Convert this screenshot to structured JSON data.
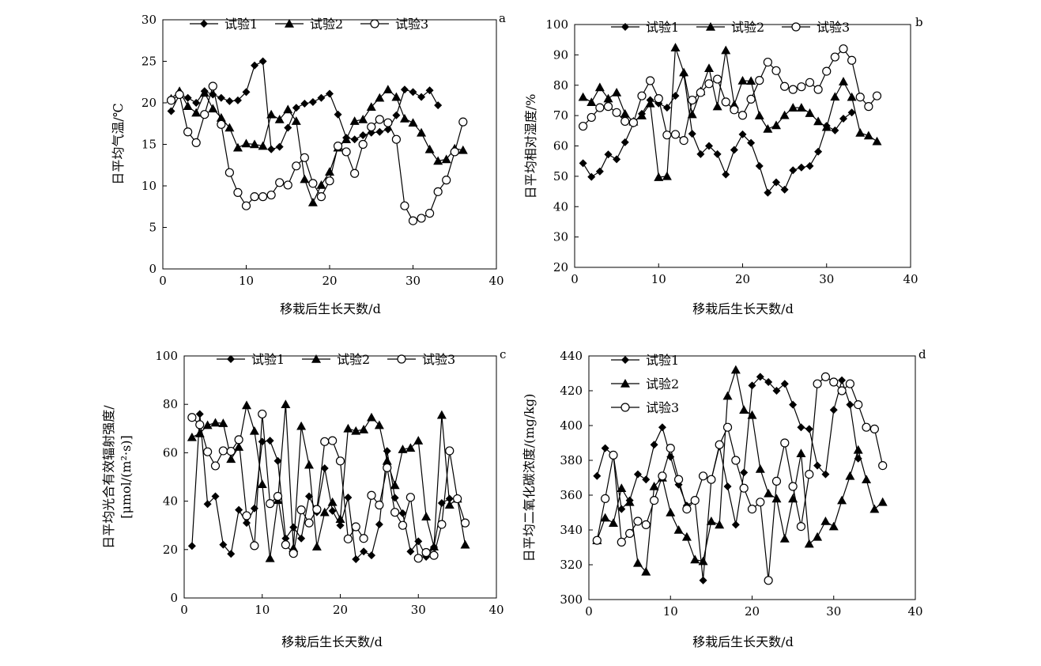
{
  "chart_data": [
    {
      "type": "line",
      "letter": "a",
      "xlabel": "移栽后生长天数/d",
      "ylabel": [
        "日平均气温/℃"
      ],
      "xlim": [
        0,
        40
      ],
      "ylim": [
        0,
        30
      ],
      "xticks": [
        0,
        10,
        20,
        30,
        40
      ],
      "yticks": [
        0,
        5,
        10,
        15,
        20,
        25,
        30
      ],
      "legend_layout": "row",
      "series": [
        {
          "name": "试验1",
          "marker": "diamond",
          "x": [
            1,
            2,
            3,
            4,
            5,
            6,
            7,
            8,
            9,
            10,
            11,
            12,
            13,
            14,
            15,
            16,
            17,
            18,
            19,
            20,
            21,
            22,
            23,
            24,
            25,
            26,
            27,
            28,
            29,
            30,
            31,
            32,
            33
          ],
          "y": [
            19.0,
            21.0,
            20.6,
            20.0,
            21.4,
            21.0,
            20.6,
            20.2,
            20.3,
            21.3,
            24.5,
            25.0,
            14.4,
            14.7,
            17.0,
            19.4,
            19.9,
            20.1,
            20.6,
            21.1,
            18.6,
            15.8,
            15.6,
            16.1,
            16.4,
            16.5,
            16.8,
            18.5,
            21.6,
            21.3,
            20.7,
            21.5,
            19.7
          ]
        },
        {
          "name": "试验2",
          "marker": "triangle",
          "x": [
            1,
            2,
            3,
            4,
            5,
            6,
            7,
            8,
            9,
            10,
            11,
            12,
            13,
            14,
            15,
            16,
            17,
            18,
            19,
            20,
            21,
            22,
            23,
            24,
            25,
            26,
            27,
            28,
            29,
            30,
            31,
            32,
            33,
            34,
            35,
            36
          ],
          "y": [
            20.5,
            21.4,
            19.6,
            18.8,
            21.2,
            19.3,
            18.2,
            17.0,
            14.6,
            15.1,
            15.0,
            14.8,
            18.6,
            18.0,
            19.2,
            17.8,
            10.8,
            8.0,
            10.1,
            11.7,
            14.6,
            15.6,
            17.8,
            18.0,
            19.5,
            20.6,
            21.6,
            20.7,
            18.1,
            17.6,
            16.4,
            14.4,
            13.0,
            13.2,
            14.5,
            14.3
          ]
        },
        {
          "name": "试验3",
          "marker": "circle",
          "x": [
            1,
            2,
            3,
            4,
            5,
            6,
            7,
            8,
            9,
            10,
            11,
            12,
            13,
            14,
            15,
            16,
            17,
            18,
            19,
            20,
            21,
            22,
            23,
            24,
            25,
            26,
            27,
            28,
            29,
            30,
            31,
            32,
            33,
            34,
            35,
            36
          ],
          "y": [
            20.3,
            21.0,
            16.5,
            15.2,
            18.6,
            22.0,
            17.4,
            11.6,
            9.2,
            7.6,
            8.7,
            8.7,
            8.9,
            10.4,
            10.1,
            12.4,
            13.4,
            10.3,
            8.7,
            10.6,
            14.8,
            14.1,
            11.5,
            15.0,
            17.1,
            18.0,
            17.6,
            15.6,
            7.6,
            5.8,
            6.1,
            6.7,
            9.3,
            10.7,
            14.1,
            17.7
          ]
        }
      ]
    },
    {
      "type": "line",
      "letter": "b",
      "xlabel": "移栽后生长天数/d",
      "ylabel": [
        "日平均相对湿度/%"
      ],
      "xlim": [
        0,
        40
      ],
      "ylim": [
        20,
        100
      ],
      "xticks": [
        0,
        10,
        20,
        30,
        40
      ],
      "yticks": [
        20,
        30,
        40,
        50,
        60,
        70,
        80,
        90,
        100
      ],
      "legend_layout": "row",
      "series": [
        {
          "name": "试验1",
          "marker": "diamond",
          "x": [
            1,
            2,
            3,
            4,
            5,
            6,
            7,
            8,
            9,
            10,
            11,
            12,
            13,
            14,
            15,
            16,
            17,
            18,
            19,
            20,
            21,
            22,
            23,
            24,
            25,
            26,
            27,
            28,
            29,
            30,
            31,
            32,
            33
          ],
          "y": [
            54.3,
            49.8,
            51.6,
            57.2,
            55.6,
            61.2,
            67.4,
            70.6,
            75.1,
            74.0,
            72.6,
            76.5,
            83.6,
            64.0,
            57.3,
            60.0,
            57.3,
            50.6,
            58.7,
            63.8,
            61.0,
            53.4,
            44.6,
            48.0,
            45.6,
            52.0,
            52.9,
            53.4,
            58.1,
            66.6,
            65.1,
            69.0,
            71.0
          ]
        },
        {
          "name": "试验2",
          "marker": "triangle",
          "x": [
            1,
            2,
            3,
            4,
            5,
            6,
            7,
            8,
            9,
            10,
            11,
            12,
            13,
            14,
            15,
            16,
            17,
            18,
            19,
            20,
            21,
            22,
            23,
            24,
            25,
            26,
            27,
            28,
            29,
            30,
            31,
            32,
            33,
            34,
            35,
            36
          ],
          "y": [
            76.1,
            74.4,
            79.3,
            75.6,
            77.6,
            70.6,
            68.0,
            70.0,
            74.0,
            49.7,
            50.0,
            92.4,
            84.2,
            70.4,
            78.0,
            85.6,
            73.0,
            91.5,
            73.6,
            81.5,
            81.4,
            70.0,
            65.6,
            66.8,
            70.1,
            72.6,
            72.6,
            70.8,
            68.1,
            66.2,
            76.2,
            81.2,
            76.1,
            64.3,
            63.4,
            61.5
          ]
        },
        {
          "name": "试验3",
          "marker": "circle",
          "x": [
            1,
            2,
            3,
            4,
            5,
            6,
            7,
            8,
            9,
            10,
            11,
            12,
            13,
            14,
            15,
            16,
            17,
            18,
            19,
            20,
            21,
            22,
            23,
            24,
            25,
            26,
            27,
            28,
            29,
            30,
            31,
            32,
            33,
            34,
            35,
            36
          ],
          "y": [
            66.5,
            69.4,
            72.6,
            73.0,
            71.0,
            68.1,
            67.7,
            76.5,
            81.5,
            75.6,
            63.6,
            63.8,
            61.8,
            75.1,
            77.6,
            80.5,
            82.0,
            74.5,
            71.9,
            70.1,
            75.4,
            81.6,
            87.6,
            84.8,
            79.6,
            78.6,
            79.5,
            80.9,
            78.6,
            84.6,
            89.3,
            92.0,
            88.2,
            76.1,
            73.0,
            76.5
          ]
        }
      ]
    },
    {
      "type": "line",
      "letter": "c",
      "xlabel": "移栽后生长天数/d",
      "ylabel": [
        "日平均光合有效辐射强度/",
        "[μmol/(m²·s)]"
      ],
      "xlim": [
        0,
        40
      ],
      "ylim": [
        0,
        100
      ],
      "xticks": [
        0,
        10,
        20,
        30,
        40
      ],
      "yticks": [
        0,
        20,
        40,
        60,
        80,
        100
      ],
      "legend_layout": "row",
      "series": [
        {
          "name": "试验1",
          "marker": "diamond",
          "x": [
            1,
            2,
            3,
            4,
            5,
            6,
            7,
            8,
            9,
            10,
            11,
            12,
            13,
            14,
            15,
            16,
            17,
            18,
            19,
            20,
            21,
            22,
            23,
            24,
            25,
            26,
            27,
            28,
            29,
            30,
            31,
            32,
            33,
            34
          ],
          "y": [
            21.5,
            76.0,
            38.8,
            42.0,
            22.0,
            18.2,
            36.4,
            31.0,
            37.0,
            64.6,
            65.0,
            56.6,
            24.6,
            29.2,
            24.6,
            42.0,
            35.4,
            53.6,
            36.0,
            30.0,
            41.5,
            16.0,
            19.2,
            17.6,
            30.4,
            60.7,
            41.4,
            35.0,
            19.2,
            23.4,
            17.0,
            21.0,
            39.2,
            41.0
          ]
        },
        {
          "name": "试验2",
          "marker": "triangle",
          "x": [
            1,
            2,
            3,
            4,
            5,
            6,
            7,
            8,
            9,
            10,
            11,
            12,
            13,
            14,
            15,
            16,
            17,
            18,
            19,
            20,
            21,
            22,
            23,
            24,
            25,
            26,
            27,
            28,
            29,
            30,
            31,
            32,
            33,
            34,
            35,
            36
          ],
          "y": [
            66.4,
            68.0,
            71.4,
            72.4,
            72.2,
            57.4,
            62.4,
            79.6,
            69.0,
            47.0,
            16.4,
            40.4,
            80.0,
            20.6,
            71.0,
            55.0,
            21.2,
            35.4,
            39.6,
            32.6,
            70.0,
            69.0,
            69.6,
            74.6,
            71.4,
            56.6,
            46.6,
            61.4,
            62.0,
            65.0,
            33.6,
            21.2,
            75.6,
            38.5,
            41.0,
            22.0
          ]
        },
        {
          "name": "试验3",
          "marker": "circle",
          "x": [
            1,
            2,
            3,
            4,
            5,
            6,
            7,
            8,
            9,
            10,
            11,
            12,
            13,
            14,
            15,
            16,
            17,
            18,
            19,
            20,
            21,
            22,
            23,
            24,
            25,
            26,
            27,
            28,
            29,
            30,
            31,
            32,
            33,
            34,
            35,
            36
          ],
          "y": [
            74.6,
            71.6,
            60.4,
            54.6,
            60.8,
            60.6,
            65.4,
            34.0,
            21.6,
            76.0,
            39.0,
            42.0,
            22.0,
            18.4,
            36.4,
            31.0,
            36.6,
            64.6,
            65.0,
            56.6,
            24.4,
            29.4,
            24.6,
            42.4,
            38.4,
            53.8,
            35.4,
            30.0,
            41.6,
            16.4,
            18.8,
            17.6,
            30.4,
            60.8,
            41.0,
            31.0
          ]
        }
      ]
    },
    {
      "type": "line",
      "letter": "d",
      "xlabel": "移栽后生长天数/d",
      "ylabel": [
        "日平均二氧化碳浓度/(mg/kg)"
      ],
      "xlim": [
        0,
        40
      ],
      "ylim": [
        300,
        440
      ],
      "xticks": [
        0,
        10,
        20,
        30,
        40
      ],
      "yticks": [
        300,
        320,
        340,
        360,
        380,
        400,
        420,
        440
      ],
      "legend_layout": "column",
      "series": [
        {
          "name": "试验1",
          "marker": "diamond",
          "x": [
            1,
            2,
            3,
            4,
            5,
            6,
            7,
            8,
            9,
            10,
            11,
            12,
            13,
            14,
            15,
            16,
            17,
            18,
            19,
            20,
            21,
            22,
            23,
            24,
            25,
            26,
            27,
            28,
            29,
            30,
            31,
            32,
            33
          ],
          "y": [
            371,
            387,
            383,
            352,
            357,
            372,
            369,
            389,
            399,
            382,
            366,
            354,
            357,
            311,
            369,
            388,
            365,
            343,
            373,
            423,
            428,
            425,
            420,
            424,
            412,
            399,
            398,
            377,
            372,
            409,
            426,
            412,
            381
          ]
        },
        {
          "name": "试验2",
          "marker": "triangle",
          "x": [
            1,
            2,
            3,
            4,
            5,
            6,
            7,
            8,
            9,
            10,
            11,
            12,
            13,
            14,
            15,
            16,
            17,
            18,
            19,
            20,
            21,
            22,
            23,
            24,
            25,
            26,
            27,
            28,
            29,
            30,
            31,
            32,
            33,
            34,
            35,
            36
          ],
          "y": [
            334,
            347,
            344,
            364,
            356,
            321,
            316,
            365,
            370,
            350,
            340,
            336,
            323,
            322,
            345,
            343,
            417,
            432,
            409,
            406,
            375,
            361,
            358,
            335,
            358,
            384,
            332,
            336,
            345,
            342,
            357,
            371,
            386,
            369,
            352,
            356
          ]
        },
        {
          "name": "试验3",
          "marker": "circle",
          "x": [
            1,
            2,
            3,
            4,
            5,
            6,
            7,
            8,
            9,
            10,
            11,
            12,
            13,
            14,
            15,
            16,
            17,
            18,
            19,
            20,
            21,
            22,
            23,
            24,
            25,
            26,
            27,
            28,
            29,
            30,
            31,
            32,
            33,
            34,
            35,
            36
          ],
          "y": [
            334,
            358,
            383,
            333,
            338,
            345,
            343,
            357,
            371,
            387,
            369,
            352,
            357,
            371,
            369,
            389,
            399,
            380,
            364,
            352,
            356,
            311,
            368,
            390,
            365,
            342,
            372,
            424,
            428,
            425,
            420,
            424,
            412,
            399,
            398,
            377
          ]
        }
      ]
    }
  ]
}
